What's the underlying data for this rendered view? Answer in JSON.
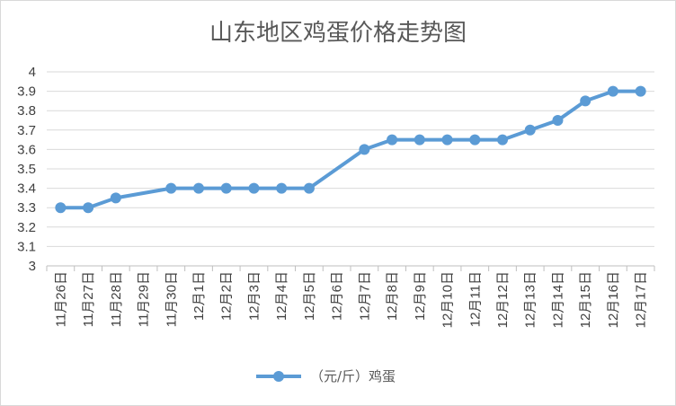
{
  "chart_data": {
    "type": "line",
    "title": "山东地区鸡蛋价格走势图",
    "xlabel": "",
    "ylabel": "",
    "categories": [
      "11月26日",
      "11月27日",
      "11月28日",
      "11月29日",
      "11月30日",
      "12月1日",
      "12月2日",
      "12月3日",
      "12月4日",
      "12月5日",
      "12月6日",
      "12月7日",
      "12月8日",
      "12月9日",
      "12月10日",
      "12月11日",
      "12月12日",
      "12月13日",
      "12月14日",
      "12月15日",
      "12月16日",
      "12月17日"
    ],
    "series": [
      {
        "name": "（元/斤）鸡蛋",
        "values": [
          3.3,
          3.3,
          3.35,
          null,
          3.4,
          3.4,
          3.4,
          3.4,
          3.4,
          3.4,
          null,
          3.6,
          3.65,
          3.65,
          3.65,
          3.65,
          3.65,
          3.7,
          3.75,
          3.85,
          3.9,
          3.9
        ],
        "color": "#5b9bd5"
      }
    ],
    "ylim": [
      3,
      4
    ],
    "yticks": [
      "3",
      "3.1",
      "3.2",
      "3.3",
      "3.4",
      "3.5",
      "3.6",
      "3.7",
      "3.8",
      "3.9",
      "4"
    ],
    "grid": true,
    "legend_position": "bottom"
  }
}
